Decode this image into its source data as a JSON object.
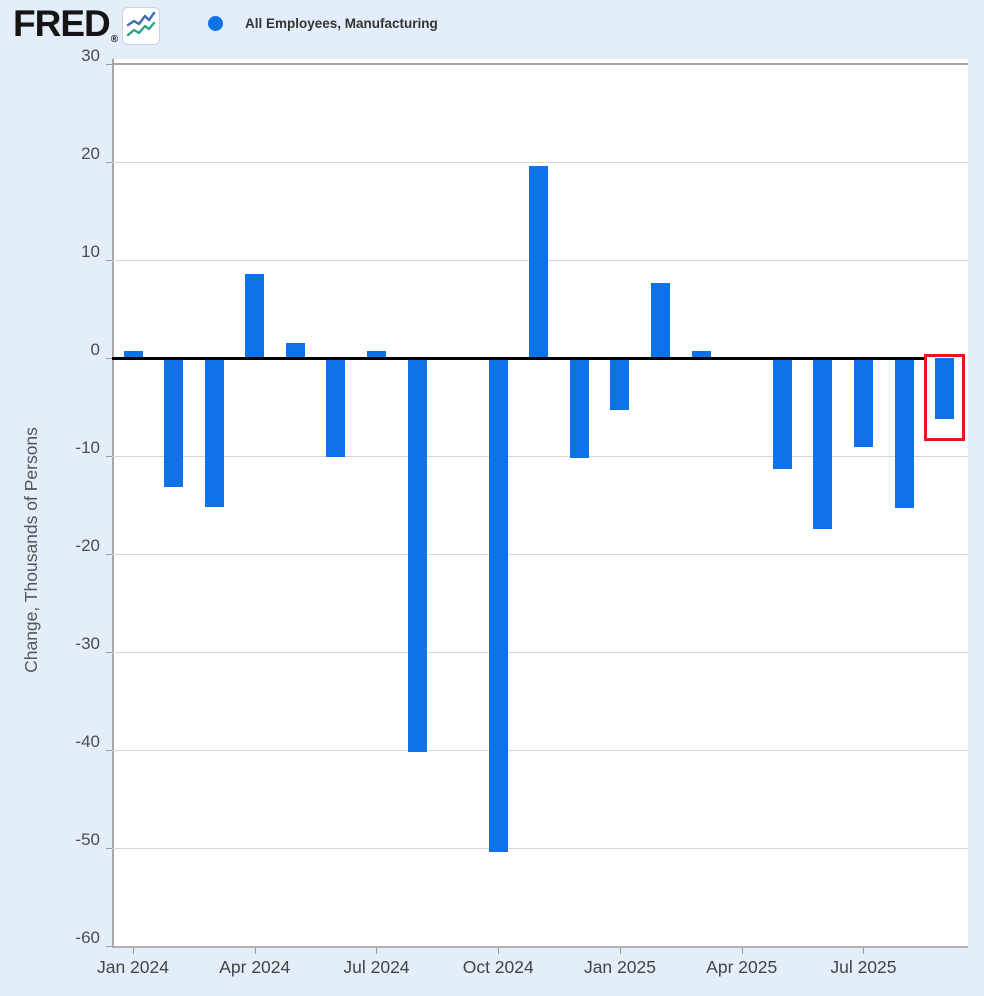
{
  "header": {
    "logo_text": "FRED",
    "registered_mark": "®",
    "legend_label": "All Employees, Manufacturing"
  },
  "colors": {
    "bar": "#0d73e6",
    "legend_marker": "#0d73e6",
    "zero_line": "#000000",
    "highlight_box": "#e2181e",
    "page_background": "#e4eefb"
  },
  "chart_data": {
    "type": "bar",
    "title": "",
    "xlabel": "",
    "ylabel": "Change, Thousands of Persons",
    "ylim": [
      -60,
      30
    ],
    "grid": true,
    "legend_position": "top-left",
    "y_ticks": [
      30,
      20,
      10,
      0,
      -10,
      -20,
      -30,
      -40,
      -50,
      -60
    ],
    "x_tick_labels": [
      "Jan 2024",
      "Apr 2024",
      "Jul 2024",
      "Oct 2024",
      "Jan 2025",
      "Apr 2025",
      "Jul 2025"
    ],
    "series_name": "All Employees, Manufacturing",
    "categories": [
      "Jan 2024",
      "Feb 2024",
      "Mar 2024",
      "Apr 2024",
      "May 2024",
      "Jun 2024",
      "Jul 2024",
      "Aug 2024",
      "Sep 2024",
      "Oct 2024",
      "Nov 2024",
      "Dec 2024",
      "Jan 2025",
      "Feb 2025",
      "Mar 2025",
      "Apr 2025",
      "May 2025",
      "Jun 2025",
      "Jul 2025",
      "Aug 2025",
      "Sep 2025"
    ],
    "values": [
      0.7,
      -13.2,
      -15.2,
      8.6,
      1.5,
      -10.1,
      0.7,
      -40.2,
      0,
      -50.4,
      19.6,
      -10.2,
      -5.3,
      7.7,
      0.7,
      0,
      -11.3,
      -17.4,
      -9.1,
      -15.3,
      -6.2
    ],
    "highlighted_category": "Sep 2025"
  }
}
